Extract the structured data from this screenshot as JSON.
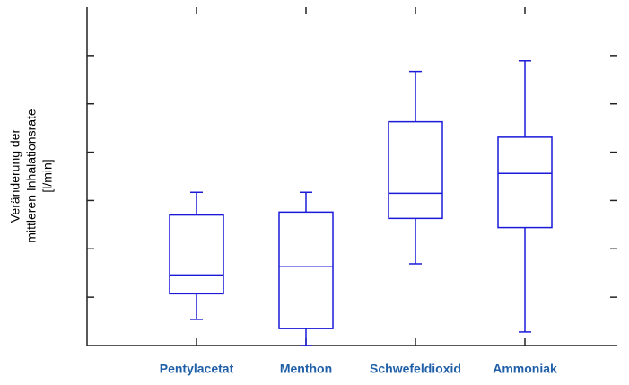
{
  "chart_data": {
    "type": "box",
    "ylabel": [
      "Veränderung der",
      "mittleren Inhalationsrate",
      "[l/min]"
    ],
    "categories": [
      "Pentylacetat",
      "Menthon",
      "Schwefeldioxid",
      "Ammoniak"
    ],
    "boxes": [
      {
        "whislo": 0.54,
        "q1": 1.07,
        "med": 1.46,
        "q3": 2.7,
        "whishi": 3.17
      },
      {
        "whislo": 0,
        "q1": 0.35,
        "med": 1.63,
        "q3": 2.76,
        "whishi": 3.17
      },
      {
        "whislo": 1.69,
        "q1": 2.63,
        "med": 3.15,
        "q3": 4.63,
        "whishi": 5.67
      },
      {
        "whislo": 0.28,
        "q1": 2.44,
        "med": 3.56,
        "q3": 4.31,
        "whishi": 5.89
      }
    ],
    "color": "#1a1ad8",
    "label_color": "#1f5fa8",
    "ylim": [
      0,
      7
    ],
    "yticks": [
      1,
      2,
      3,
      4,
      5,
      6
    ]
  }
}
